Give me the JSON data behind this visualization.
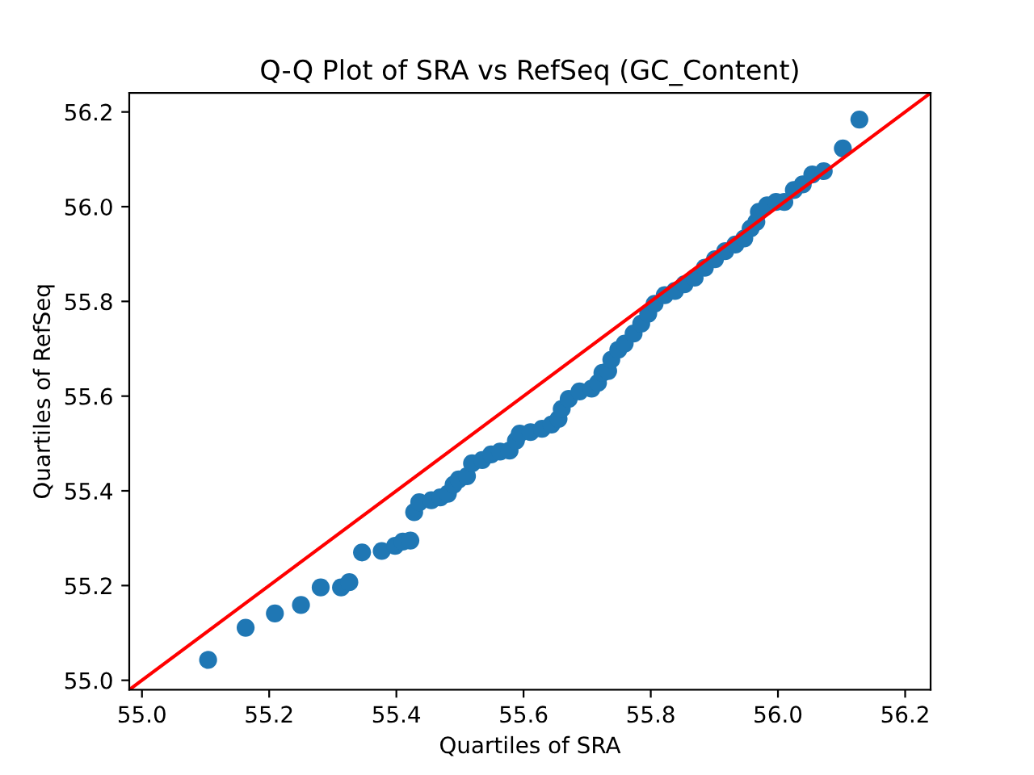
{
  "chart_data": {
    "type": "scatter",
    "title": "Q-Q Plot of SRA vs RefSeq (GC_Content)",
    "xlabel": "Quartiles of SRA",
    "ylabel": "Quartiles of RefSeq",
    "xlim": [
      54.98,
      56.24
    ],
    "ylim": [
      54.98,
      56.24
    ],
    "xticks": [
      {
        "value": 55.0,
        "label": "55.0"
      },
      {
        "value": 55.2,
        "label": "55.2"
      },
      {
        "value": 55.4,
        "label": "55.4"
      },
      {
        "value": 55.6,
        "label": "55.6"
      },
      {
        "value": 55.8,
        "label": "55.8"
      },
      {
        "value": 56.0,
        "label": "56.0"
      },
      {
        "value": 56.2,
        "label": "56.2"
      }
    ],
    "yticks": [
      {
        "value": 55.0,
        "label": "55.0"
      },
      {
        "value": 55.2,
        "label": "55.2"
      },
      {
        "value": 55.4,
        "label": "55.4"
      },
      {
        "value": 55.6,
        "label": "55.6"
      },
      {
        "value": 55.8,
        "label": "55.8"
      },
      {
        "value": 56.0,
        "label": "56.0"
      },
      {
        "value": 56.2,
        "label": "56.2"
      }
    ],
    "grid": false,
    "marker": "circle",
    "series": [
      {
        "color": "#1f77b4",
        "x": [
          55.104,
          55.163,
          55.209,
          55.25,
          55.281,
          55.313,
          55.326,
          55.346,
          55.377,
          55.398,
          55.41,
          55.422,
          55.428,
          55.436,
          55.455,
          55.469,
          55.481,
          55.49,
          55.498,
          55.511,
          55.519,
          55.535,
          55.549,
          55.563,
          55.578,
          55.588,
          55.594,
          55.611,
          55.629,
          55.644,
          55.655,
          55.66,
          55.671,
          55.688,
          55.707,
          55.717,
          55.724,
          55.733,
          55.738,
          55.749,
          55.759,
          55.773,
          55.785,
          55.796,
          55.806,
          55.822,
          55.838,
          55.853,
          55.869,
          55.885,
          55.901,
          55.917,
          55.933,
          55.947,
          55.957,
          55.966,
          55.97,
          55.983,
          55.997,
          56.01,
          56.025,
          56.039,
          56.054,
          56.072,
          56.102,
          56.128
        ],
        "values": [
          55.043,
          55.111,
          55.141,
          55.159,
          55.196,
          55.196,
          55.207,
          55.27,
          55.273,
          55.284,
          55.293,
          55.295,
          55.355,
          55.376,
          55.38,
          55.386,
          55.394,
          55.413,
          55.424,
          55.431,
          55.458,
          55.465,
          55.477,
          55.483,
          55.485,
          55.506,
          55.521,
          55.524,
          55.531,
          55.54,
          55.552,
          55.573,
          55.594,
          55.61,
          55.616,
          55.628,
          55.649,
          55.653,
          55.677,
          55.698,
          55.711,
          55.732,
          55.753,
          55.774,
          55.795,
          55.813,
          55.822,
          55.836,
          55.85,
          55.871,
          55.889,
          55.906,
          55.92,
          55.933,
          55.954,
          55.968,
          55.989,
          56.003,
          56.01,
          56.01,
          56.035,
          56.047,
          56.068,
          56.075,
          56.123,
          56.184
        ]
      },
      {
        "type": "line",
        "color": "#ff0000",
        "marker": "none",
        "line_style": "solid",
        "x": [
          54.98,
          56.24
        ],
        "values": [
          54.98,
          56.24
        ]
      }
    ]
  }
}
